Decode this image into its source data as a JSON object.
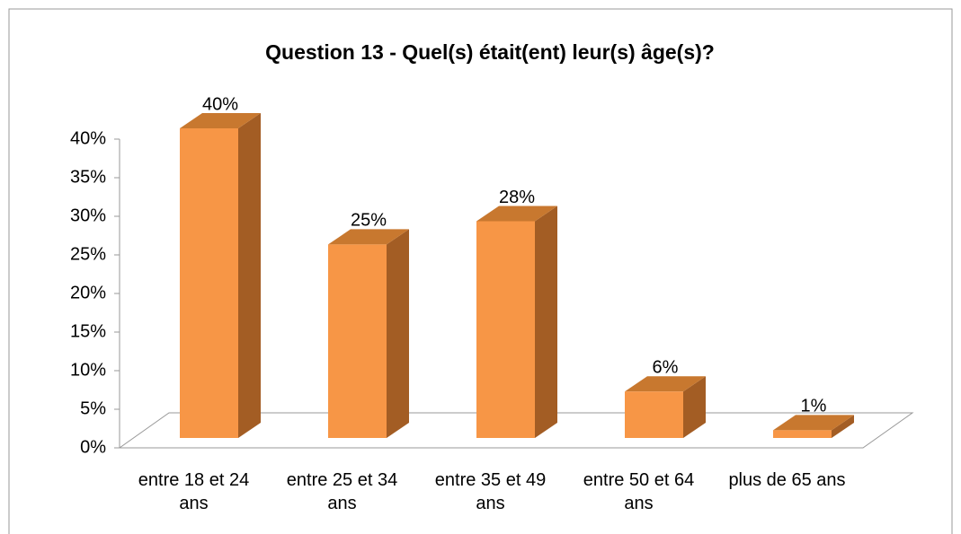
{
  "chart_data": {
    "type": "bar3d",
    "title": "Question 13 - Quel(s) était(ent) leur(s) âge(s)?",
    "categories": [
      "entre 18 et 24 ans",
      "entre 25 et 34 ans",
      "entre 35 et 49 ans",
      "entre 50 et 64 ans",
      "plus de 65 ans"
    ],
    "values": [
      40,
      25,
      28,
      6,
      1
    ],
    "value_labels": [
      "40%",
      "25%",
      "28%",
      "6%",
      "1%"
    ],
    "color": "#f79646",
    "ylim": [
      0,
      40
    ],
    "yticks": [
      {
        "value": 0,
        "label": "0%"
      },
      {
        "value": 5,
        "label": "5%"
      },
      {
        "value": 10,
        "label": "10%"
      },
      {
        "value": 15,
        "label": "15%"
      },
      {
        "value": 20,
        "label": "20%"
      },
      {
        "value": 25,
        "label": "25%"
      },
      {
        "value": 30,
        "label": "30%"
      },
      {
        "value": 35,
        "label": "35%"
      },
      {
        "value": 40,
        "label": "40%"
      }
    ],
    "grid": false
  }
}
